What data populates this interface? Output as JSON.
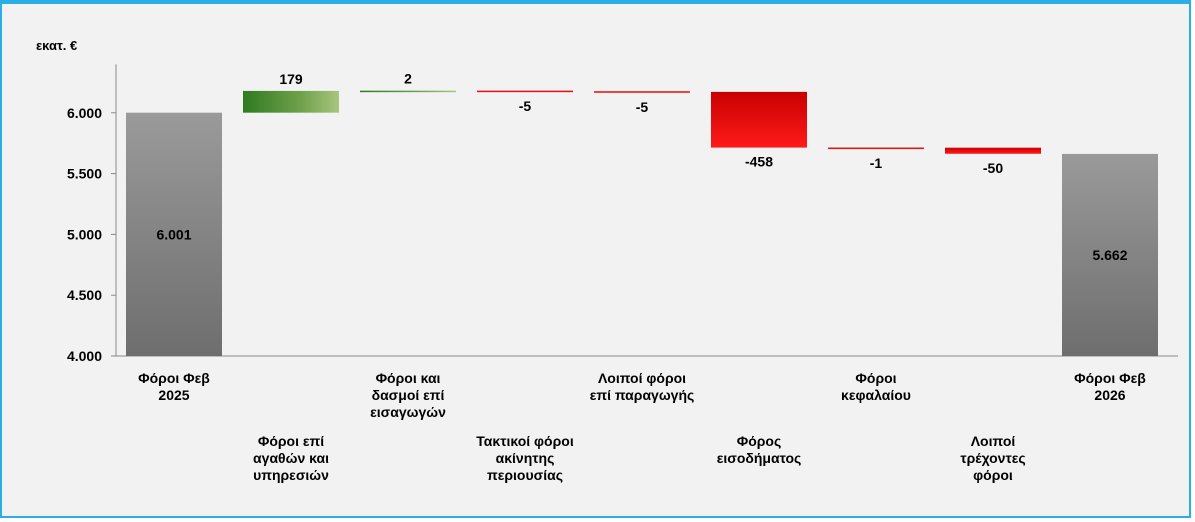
{
  "chart_data": {
    "type": "waterfall",
    "unit_label": "εκατ. €",
    "ylim": [
      4000,
      6300
    ],
    "yticks": [
      4000,
      4500,
      5000,
      5500,
      6000
    ],
    "ytick_labels": [
      "4.000",
      "4.500",
      "5.000",
      "5.500",
      "6.000"
    ],
    "grid": false,
    "categories": [
      {
        "label": [
          "Φόροι Φεβ",
          "2025"
        ],
        "kind": "total",
        "value": 6001,
        "display": "6.001"
      },
      {
        "label": [
          "Φόροι επί",
          "αγαθών και",
          "υπηρεσιών"
        ],
        "kind": "delta",
        "value": 179,
        "display": "179"
      },
      {
        "label": [
          "Φόροι και",
          "δασμοί επί",
          "εισαγωγών"
        ],
        "kind": "delta",
        "value": 2,
        "display": "2"
      },
      {
        "label": [
          "Τακτικοί φόροι",
          "ακίνητης",
          "περιουσίας"
        ],
        "kind": "delta",
        "value": -5,
        "display": "-5"
      },
      {
        "label": [
          "Λοιποί φόροι",
          "επί παραγωγής"
        ],
        "kind": "delta",
        "value": -5,
        "display": "-5"
      },
      {
        "label": [
          "Φόρος",
          "εισοδήματος"
        ],
        "kind": "delta",
        "value": -458,
        "display": "-458"
      },
      {
        "label": [
          "Φόροι",
          "κεφαλαίου"
        ],
        "kind": "delta",
        "value": -1,
        "display": "-1"
      },
      {
        "label": [
          "Λοιποί",
          "τρέχοντες",
          "φόροι"
        ],
        "kind": "delta",
        "value": -50,
        "display": "-50"
      },
      {
        "label": [
          "Φόροι Φεβ",
          "2026"
        ],
        "kind": "total",
        "value": 5662,
        "display": "5.662"
      }
    ],
    "colors": {
      "total": "#7f7f7f",
      "increase": "#4a8a2e",
      "decrease": "#e00000",
      "frame": "#29aee6",
      "background": "#f2f2f2"
    }
  }
}
